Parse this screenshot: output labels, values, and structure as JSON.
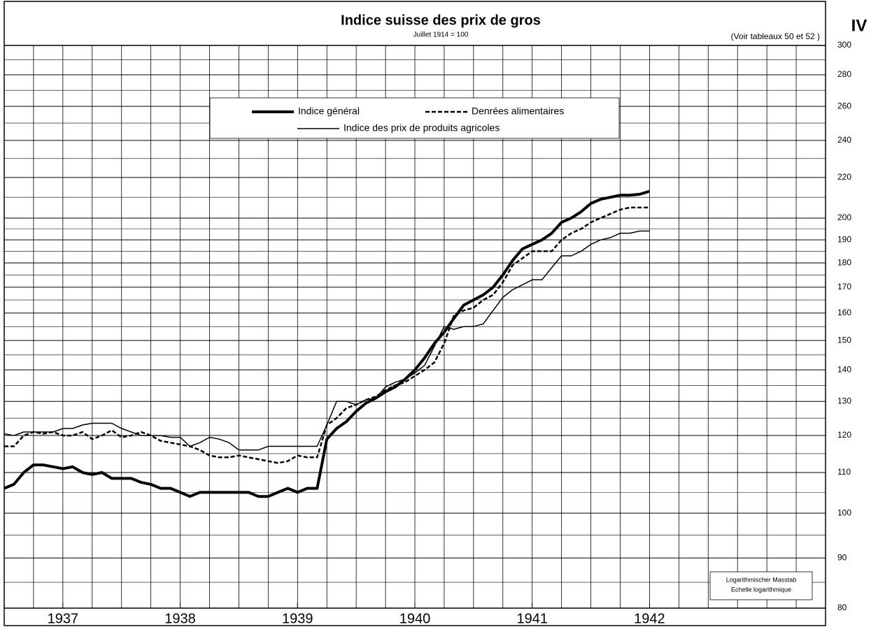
{
  "chart_data": {
    "type": "line",
    "title": "Indice suisse des prix de gros",
    "subtitle": "Juillet 1914 = 100",
    "note": "(Voir tableaux 50 et 52 )",
    "plate": "IV",
    "scale_note": [
      "Logarithmischer Masstab",
      "Echelle logarithmique"
    ],
    "log_y": true,
    "grid": true,
    "x": [
      1937,
      1937.083,
      1937.167,
      1937.25,
      1937.333,
      1937.417,
      1937.5,
      1937.583,
      1937.667,
      1937.75,
      1937.833,
      1937.917,
      1938,
      1938.083,
      1938.167,
      1938.25,
      1938.333,
      1938.417,
      1938.5,
      1938.583,
      1938.667,
      1938.75,
      1938.833,
      1938.917,
      1939,
      1939.083,
      1939.167,
      1939.25,
      1939.333,
      1939.417,
      1939.5,
      1939.583,
      1939.667,
      1939.75,
      1939.833,
      1939.917,
      1940,
      1940.083,
      1940.167,
      1940.25,
      1940.333,
      1940.417,
      1940.5,
      1940.583,
      1940.667,
      1940.75,
      1940.833,
      1940.917,
      1941,
      1941.083,
      1941.167,
      1941.25,
      1941.333,
      1941.417,
      1941.5,
      1941.583,
      1941.667,
      1941.75,
      1941.833,
      1941.917,
      1942,
      1942.083,
      1942.167,
      1942.25,
      1942.333,
      1942.417,
      1942.5
    ],
    "series": [
      {
        "name": "Indice général",
        "color": "#000000",
        "line_width": 4,
        "dash": false,
        "values": [
          106,
          107,
          110,
          112,
          112,
          111.5,
          111,
          111.5,
          110,
          109.5,
          110,
          108.5,
          108.5,
          108.5,
          107.5,
          107,
          106,
          106,
          105,
          104,
          105,
          105,
          105,
          105,
          105,
          105,
          104,
          104,
          105,
          106,
          105,
          106,
          106,
          119,
          122,
          124,
          127,
          129.5,
          131,
          133,
          134.5,
          137,
          140,
          144,
          149,
          153,
          158,
          163,
          165,
          167,
          170,
          175,
          181,
          186,
          188,
          190,
          193,
          198,
          200,
          203,
          207,
          209,
          210,
          211,
          211,
          211.5,
          213
        ]
      },
      {
        "name": "Denrées alimentaires",
        "color": "#000000",
        "line_width": 2.5,
        "dash": true,
        "values": [
          117,
          117,
          120,
          121,
          120.5,
          121,
          120,
          120,
          121,
          119,
          120,
          121.5,
          119.5,
          120,
          121,
          120,
          118.5,
          118,
          117.5,
          117,
          116,
          114.5,
          114,
          114,
          114.5,
          114,
          113.5,
          113,
          112.5,
          113,
          114.5,
          114,
          114,
          123,
          125,
          128,
          129,
          130.5,
          131.5,
          133.5,
          135,
          136,
          138,
          140,
          142.5,
          149,
          159,
          161,
          162,
          165,
          167,
          172,
          179,
          182,
          185,
          185,
          185,
          190,
          193,
          195,
          198,
          200,
          202,
          204,
          205,
          205,
          205
        ]
      },
      {
        "name": "Indice des prix de produits agricoles",
        "color": "#000000",
        "line_width": 1.5,
        "dash": false,
        "values": [
          120.5,
          120,
          121,
          121,
          121,
          121,
          122,
          122,
          123,
          123.5,
          123.5,
          123.5,
          122,
          121,
          120,
          120,
          120,
          119.5,
          119.5,
          117,
          118,
          119.5,
          119,
          118,
          116,
          116,
          116,
          117,
          117,
          117,
          117,
          117,
          117,
          123,
          130,
          130,
          129,
          130.5,
          131,
          134.5,
          136,
          137,
          139,
          141.5,
          148,
          155,
          154,
          155,
          155,
          156,
          161,
          166,
          169,
          171,
          173,
          173,
          178,
          183,
          183,
          185,
          188,
          190,
          191,
          193,
          193,
          194,
          194
        ]
      }
    ],
    "xlim": [
      1937,
      1944
    ],
    "xticks": [
      {
        "value": 1937.5,
        "label": "1937"
      },
      {
        "value": 1938.5,
        "label": "1938"
      },
      {
        "value": 1939.5,
        "label": "1939"
      },
      {
        "value": 1940.5,
        "label": "1940"
      },
      {
        "value": 1941.5,
        "label": "1941"
      },
      {
        "value": 1942.5,
        "label": "1942"
      }
    ],
    "xgrid": [
      1937.25,
      1937.5,
      1937.75,
      1938,
      1938.25,
      1938.5,
      1938.75,
      1939,
      1939.25,
      1939.5,
      1939.75,
      1940,
      1940.25,
      1940.5,
      1940.75,
      1941,
      1941.25,
      1941.5,
      1941.75,
      1942,
      1942.25,
      1942.5,
      1942.75,
      1943,
      1943.25,
      1943.5,
      1943.75
    ],
    "ylim": [
      80,
      300
    ],
    "yticks": [
      80,
      90,
      100,
      110,
      120,
      130,
      140,
      150,
      160,
      170,
      180,
      190,
      200,
      220,
      240,
      260,
      280,
      300
    ],
    "yminor": [
      85,
      95,
      105,
      115,
      125,
      135,
      145,
      155,
      165,
      175,
      185,
      195,
      210,
      230,
      250,
      270,
      290
    ]
  }
}
